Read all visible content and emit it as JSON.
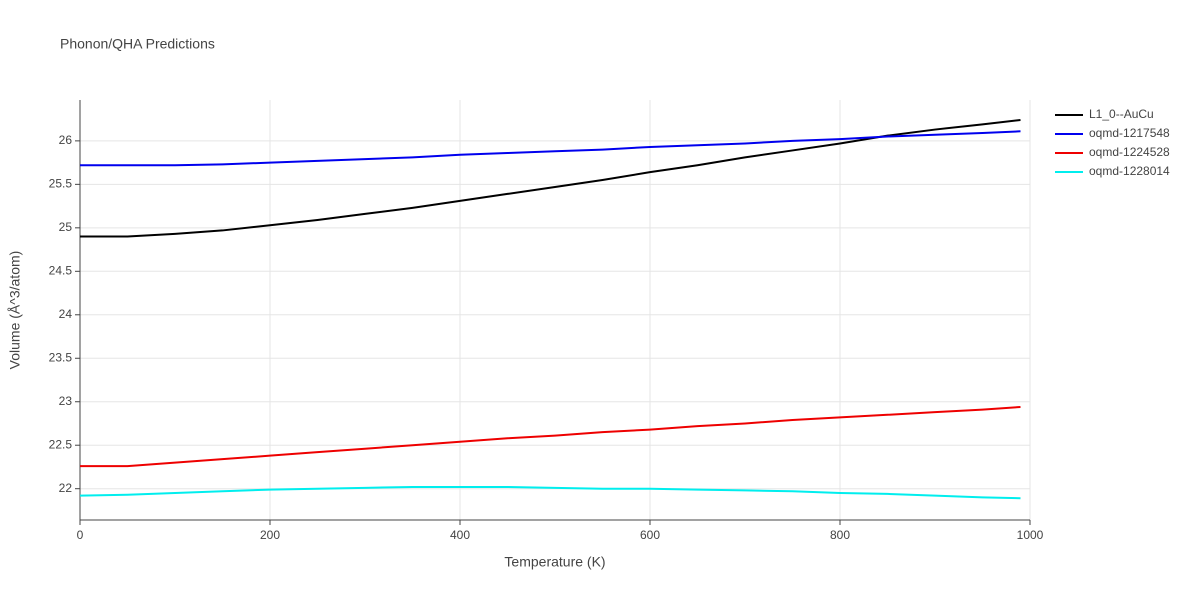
{
  "chart_data": {
    "type": "line",
    "title": "Phonon/QHA Predictions",
    "x_label": "Temperature (K)",
    "y_label": "Volume (Å^3/atom)",
    "x": [
      0,
      50,
      100,
      150,
      200,
      250,
      300,
      350,
      400,
      450,
      500,
      550,
      600,
      650,
      700,
      750,
      800,
      850,
      900,
      950,
      990
    ],
    "series": [
      {
        "name": "L1_0--AuCu",
        "color": "#000000",
        "values": [
          24.9,
          24.9,
          24.93,
          24.97,
          25.03,
          25.09,
          25.16,
          25.23,
          25.31,
          25.39,
          25.47,
          25.55,
          25.64,
          25.72,
          25.81,
          25.89,
          25.97,
          26.06,
          26.13,
          26.19,
          26.24
        ]
      },
      {
        "name": "oqmd-1217548",
        "color": "#0000ee",
        "values": [
          25.72,
          25.72,
          25.72,
          25.73,
          25.75,
          25.77,
          25.79,
          25.81,
          25.84,
          25.86,
          25.88,
          25.9,
          25.93,
          25.95,
          25.97,
          26.0,
          26.02,
          26.05,
          26.07,
          26.09,
          26.11
        ]
      },
      {
        "name": "oqmd-1224528",
        "color": "#ee0000",
        "values": [
          22.26,
          22.26,
          22.3,
          22.34,
          22.38,
          22.42,
          22.46,
          22.5,
          22.54,
          22.58,
          22.61,
          22.65,
          22.68,
          22.72,
          22.75,
          22.79,
          22.82,
          22.85,
          22.88,
          22.91,
          22.94
        ]
      },
      {
        "name": "oqmd-1228014",
        "color": "#00eeee",
        "values": [
          21.92,
          21.93,
          21.95,
          21.97,
          21.99,
          22.0,
          22.01,
          22.02,
          22.02,
          22.02,
          22.01,
          22.0,
          22.0,
          21.99,
          21.98,
          21.97,
          21.95,
          21.94,
          21.92,
          21.9,
          21.89
        ]
      }
    ],
    "xlim": [
      0,
      1000
    ],
    "xticks": [
      0,
      200,
      400,
      600,
      800,
      1000
    ],
    "ylim": [
      21.64,
      26.47
    ],
    "yticks": [
      22,
      22.5,
      23,
      23.5,
      24,
      24.5,
      25,
      25.5,
      26
    ],
    "grid": true,
    "legend": "right"
  }
}
